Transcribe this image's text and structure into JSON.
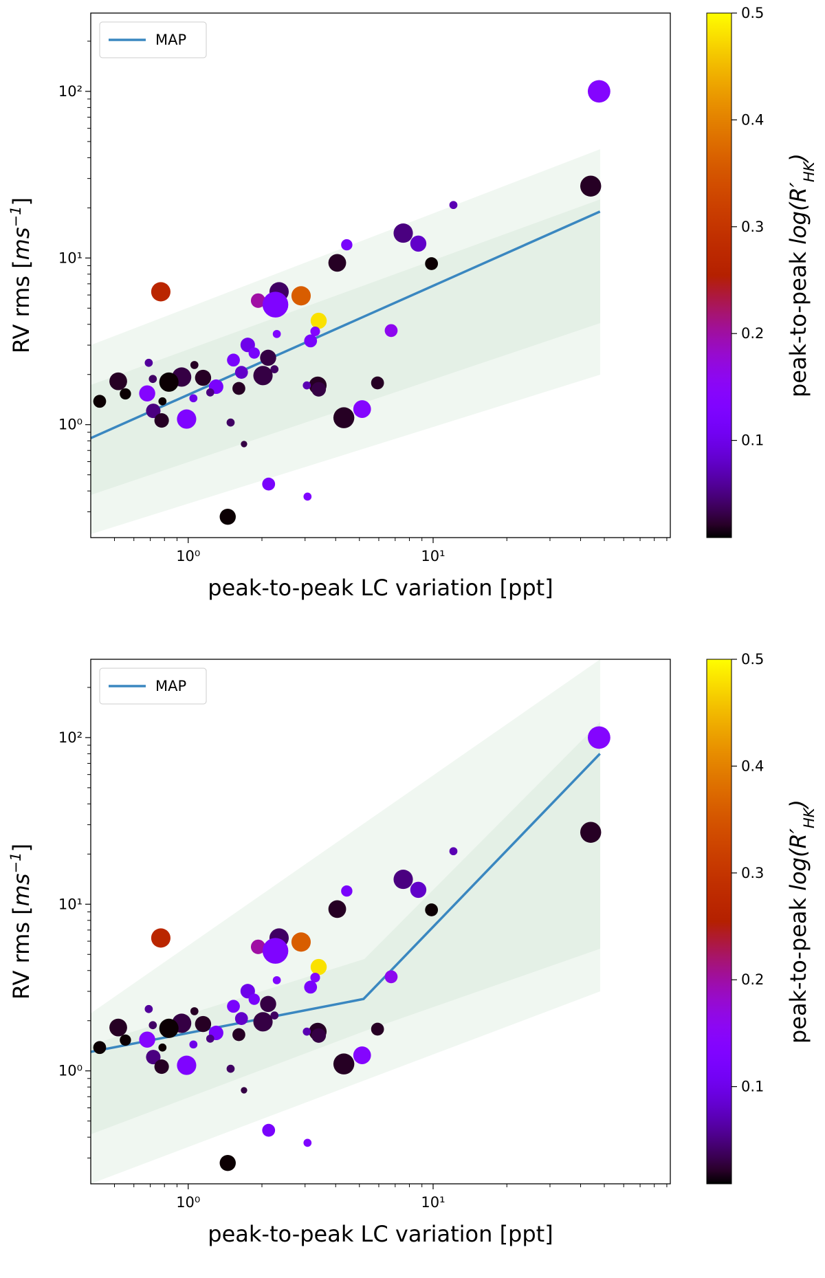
{
  "chart_data": [
    {
      "type": "scatter",
      "x": [
        47.6,
        44,
        12.1,
        7.55,
        8.7,
        4.44,
        4.06,
        9.85,
        0.773,
        2.35,
        1.93,
        2.89,
        2.27,
        3.41,
        6.74,
        3.3,
        2.3,
        3.16,
        1.75,
        1.86,
        0.69,
        1.53,
        2.12,
        1.06,
        2.25,
        0.518,
        0.717,
        0.94,
        1.15,
        0.834,
        1.65,
        2.02,
        3.38,
        5.93,
        1.61,
        0.554,
        0.68,
        1.3,
        1.23,
        1.05,
        3.05,
        3.41,
        0.435,
        0.785,
        0.72,
        5.13,
        4.32,
        0.779,
        0.985,
        1.49,
        1.69,
        2.13,
        3.07,
        1.45
      ],
      "values": [
        100,
        27,
        20.8,
        14.1,
        12.2,
        12,
        9.35,
        9.25,
        6.27,
        6.27,
        5.55,
        5.93,
        5.25,
        4.2,
        3.67,
        3.63,
        3.5,
        3.18,
        3.01,
        2.69,
        2.35,
        2.44,
        2.52,
        2.28,
        2.15,
        1.82,
        1.88,
        1.93,
        1.91,
        1.8,
        2.06,
        1.97,
        1.72,
        1.78,
        1.65,
        1.53,
        1.54,
        1.69,
        1.56,
        1.44,
        1.72,
        1.63,
        1.38,
        1.38,
        1.21,
        1.24,
        1.1,
        1.06,
        1.08,
        1.03,
        0.765,
        0.44,
        0.37,
        0.28
      ],
      "sizes": [
        14,
        13,
        5,
        12,
        10,
        7,
        11,
        8,
        12,
        12,
        9,
        12,
        16,
        10,
        8,
        6,
        5,
        8,
        9,
        7,
        5,
        8,
        10,
        5,
        5,
        11,
        5,
        12,
        10,
        12,
        8,
        12,
        11,
        8,
        8,
        7,
        10,
        9,
        5,
        5,
        5,
        9,
        8,
        5,
        9,
        11,
        13,
        9,
        12,
        5,
        4,
        8,
        5,
        10
      ],
      "color_values": [
        0.14,
        0.02,
        0.07,
        0.05,
        0.08,
        0.12,
        0.02,
        0.01,
        0.27,
        0.04,
        0.2,
        0.36,
        0.13,
        0.48,
        0.16,
        0.14,
        0.13,
        0.12,
        0.1,
        0.12,
        0.06,
        0.12,
        0.03,
        0.02,
        0.04,
        0.02,
        0.04,
        0.03,
        0.02,
        0.01,
        0.08,
        0.03,
        0.02,
        0.02,
        0.02,
        0.01,
        0.14,
        0.12,
        0.05,
        0.1,
        0.07,
        0.03,
        0.01,
        0.01,
        0.05,
        0.14,
        0.02,
        0.02,
        0.13,
        0.04,
        0.03,
        0.12,
        0.13,
        0.01
      ],
      "colormap": "gnuplot",
      "clim": [
        0.009,
        0.5
      ],
      "cticks": [
        0.1,
        0.2,
        0.3,
        0.4,
        0.5
      ],
      "series": [
        {
          "name": "MAP",
          "color": "#3a87c0",
          "x": [
            0.4,
            48
          ],
          "values": [
            0.83,
            19
          ]
        }
      ],
      "legend": "upper left",
      "xlim": [
        0.4,
        93
      ],
      "ylim": [
        0.21,
        295
      ],
      "xscale": "log",
      "yscale": "log",
      "xticks": [
        {
          "value": 1,
          "label": "10⁰"
        },
        {
          "value": 10,
          "label": "10¹"
        }
      ],
      "yticks": [
        {
          "value": 1,
          "label": "10⁰"
        },
        {
          "value": 10,
          "label": "10¹"
        },
        {
          "value": 100,
          "label": "10²"
        }
      ],
      "xlabel": "peak-to-peak LC variation [ppt]",
      "ylabel": [
        "RV rms [",
        "ms",
        "−1",
        "]"
      ],
      "colorbar_label": [
        "peak-to-peak ",
        "log(R′",
        "HK",
        ")"
      ]
    },
    {
      "type": "scatter",
      "x": [
        47.6,
        44,
        12.1,
        7.55,
        8.7,
        4.44,
        4.06,
        9.85,
        0.773,
        2.35,
        1.93,
        2.89,
        2.27,
        3.41,
        6.74,
        3.3,
        2.3,
        3.16,
        1.75,
        1.86,
        0.69,
        1.53,
        2.12,
        1.06,
        2.25,
        0.518,
        0.717,
        0.94,
        1.15,
        0.834,
        1.65,
        2.02,
        3.38,
        5.93,
        1.61,
        0.554,
        0.68,
        1.3,
        1.23,
        1.05,
        3.05,
        3.41,
        0.435,
        0.785,
        0.72,
        5.13,
        4.32,
        0.779,
        0.985,
        1.49,
        1.69,
        2.13,
        3.07,
        1.45
      ],
      "values": [
        100,
        27,
        20.8,
        14.1,
        12.2,
        12,
        9.35,
        9.25,
        6.27,
        6.27,
        5.55,
        5.93,
        5.25,
        4.2,
        3.67,
        3.63,
        3.5,
        3.18,
        3.01,
        2.69,
        2.35,
        2.44,
        2.52,
        2.28,
        2.15,
        1.82,
        1.88,
        1.93,
        1.91,
        1.8,
        2.06,
        1.97,
        1.72,
        1.78,
        1.65,
        1.53,
        1.54,
        1.69,
        1.56,
        1.44,
        1.72,
        1.63,
        1.38,
        1.38,
        1.21,
        1.24,
        1.1,
        1.06,
        1.08,
        1.03,
        0.765,
        0.44,
        0.37,
        0.28
      ],
      "sizes": [
        14,
        13,
        5,
        12,
        10,
        7,
        11,
        8,
        12,
        12,
        9,
        12,
        16,
        10,
        8,
        6,
        5,
        8,
        9,
        7,
        5,
        8,
        10,
        5,
        5,
        11,
        5,
        12,
        10,
        12,
        8,
        12,
        11,
        8,
        8,
        7,
        10,
        9,
        5,
        5,
        5,
        9,
        8,
        5,
        9,
        11,
        13,
        9,
        12,
        5,
        4,
        8,
        5,
        10
      ],
      "color_values": [
        0.14,
        0.02,
        0.07,
        0.05,
        0.08,
        0.12,
        0.02,
        0.01,
        0.27,
        0.04,
        0.2,
        0.36,
        0.13,
        0.48,
        0.16,
        0.14,
        0.13,
        0.12,
        0.1,
        0.12,
        0.06,
        0.12,
        0.03,
        0.02,
        0.04,
        0.02,
        0.04,
        0.03,
        0.02,
        0.01,
        0.08,
        0.03,
        0.02,
        0.02,
        0.02,
        0.01,
        0.14,
        0.12,
        0.05,
        0.1,
        0.07,
        0.03,
        0.01,
        0.01,
        0.05,
        0.14,
        0.02,
        0.02,
        0.13,
        0.04,
        0.03,
        0.12,
        0.13,
        0.01
      ],
      "colormap": "gnuplot",
      "clim": [
        0.009,
        0.5
      ],
      "cticks": [
        0.1,
        0.2,
        0.3,
        0.4,
        0.5
      ],
      "series": [
        {
          "name": "MAP",
          "color": "#3a87c0",
          "x": [
            0.4,
            5.2,
            48
          ],
          "values": [
            1.3,
            2.7,
            80
          ]
        }
      ],
      "legend": "upper left",
      "xlim": [
        0.4,
        93
      ],
      "ylim": [
        0.21,
        295
      ],
      "xscale": "log",
      "yscale": "log",
      "xticks": [
        {
          "value": 1,
          "label": "10⁰"
        },
        {
          "value": 10,
          "label": "10¹"
        }
      ],
      "yticks": [
        {
          "value": 1,
          "label": "10⁰"
        },
        {
          "value": 10,
          "label": "10¹"
        },
        {
          "value": 100,
          "label": "10²"
        }
      ],
      "xlabel": "peak-to-peak LC variation [ppt]",
      "ylabel": [
        "RV rms [",
        "ms",
        "−1",
        "]"
      ],
      "colorbar_label": [
        "peak-to-peak ",
        "log(R′",
        "HK",
        ")"
      ]
    }
  ]
}
